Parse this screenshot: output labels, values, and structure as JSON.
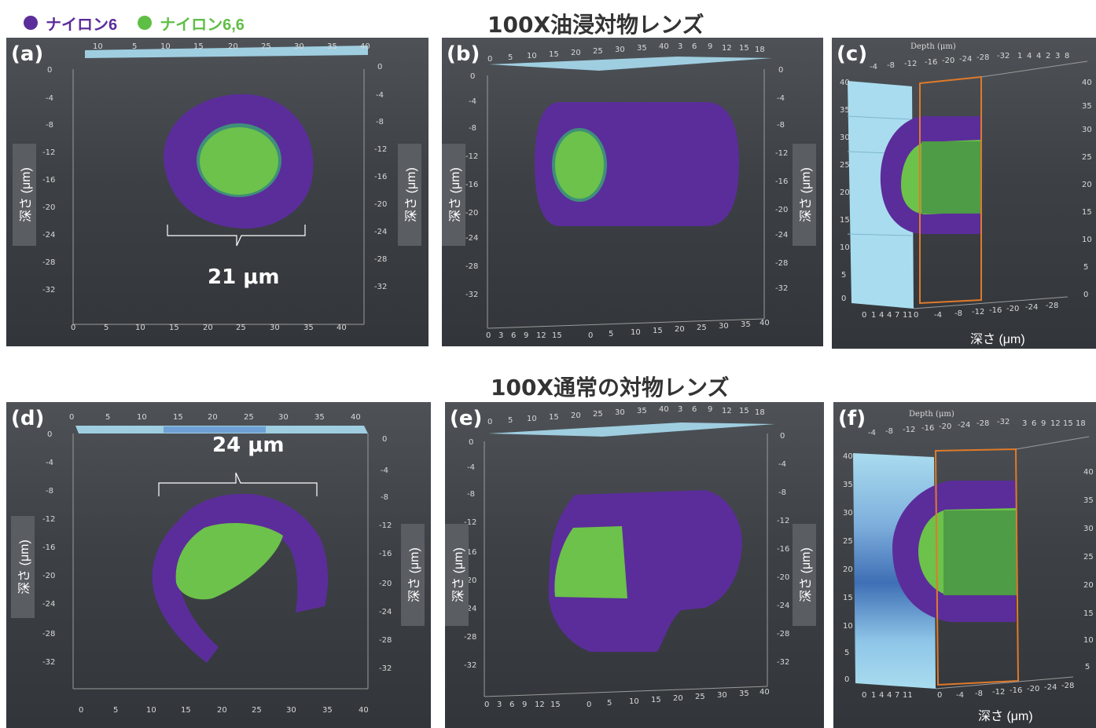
{
  "legend": [
    {
      "label": "ナイロン6",
      "color": "#5b2d9a"
    },
    {
      "label": "ナイロン6,6",
      "color": "#5fbf45"
    }
  ],
  "sections": {
    "top_title": "100X油浸対物レンズ",
    "bottom_title": "100X通常の対物レンズ"
  },
  "panels": {
    "a": {
      "label": "(a)",
      "y_label": "深さ (μm)",
      "measurement": "21 μm"
    },
    "b": {
      "label": "(b)",
      "y_label": "深さ (μm)"
    },
    "c": {
      "label": "(c)",
      "depth_label": "深さ (μm)",
      "header": "Depth (μm)"
    },
    "d": {
      "label": "(d)",
      "y_label": "深さ (μm)",
      "measurement": "24 μm"
    },
    "e": {
      "label": "(e)",
      "y_label": "深さ (μm)"
    },
    "f": {
      "label": "(f)",
      "depth_label": "深さ (μm)",
      "header": "Depth (μm)"
    }
  },
  "axes": {
    "x_ticks": [
      "0",
      "5",
      "10",
      "15",
      "20",
      "25",
      "30",
      "35",
      "40"
    ],
    "y_ticks": [
      "0",
      "-4",
      "-8",
      "-12",
      "-16",
      "-20",
      "-24",
      "-28",
      "-32"
    ]
  },
  "colors": {
    "nylon6": "#5b2d9a",
    "nylon66": "#5fbf45",
    "glass": "#a9dcef",
    "frame": "#e07a2a"
  }
}
